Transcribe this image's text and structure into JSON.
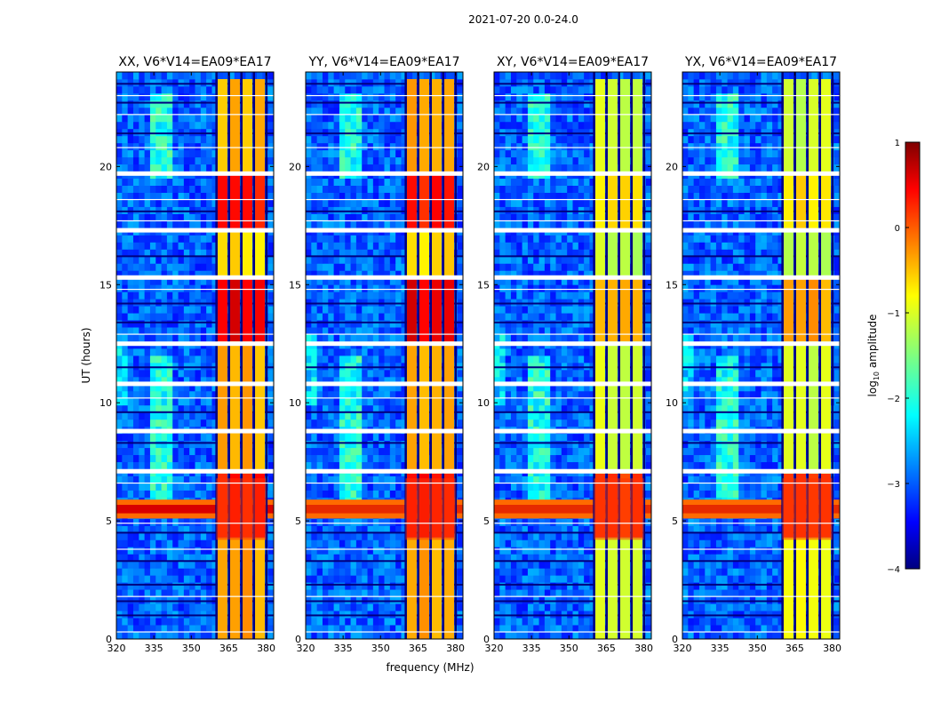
{
  "figure": {
    "suptitle": "2021-07-20 0.0-24.0",
    "xlabel": "frequency (MHz)",
    "ylabel": "UT (hours)"
  },
  "colorbar": {
    "label": "log10 amplitude",
    "label_main": "log",
    "label_sub": "10",
    "label_rest": " amplitude",
    "range": [
      -4,
      1
    ],
    "ticks": [
      1,
      0,
      -1,
      -2,
      -3,
      -4
    ],
    "tick_labels": [
      "1",
      "0",
      "−1",
      "−2",
      "−3",
      "−4"
    ],
    "colormap": "jet"
  },
  "chart_data": [
    {
      "type": "heatmap",
      "title": "XX, V6*V14=EA09*EA17",
      "polarization": "XX",
      "xlabel": "frequency (MHz)",
      "ylabel": "UT (hours)",
      "xlim": [
        320,
        383
      ],
      "ylim": [
        0,
        24
      ],
      "xticks": [
        320,
        335,
        350,
        365,
        380
      ],
      "yticks": [
        0,
        5,
        10,
        15,
        20
      ],
      "rfi_band_mhz": [
        360,
        380
      ],
      "strong_broadband_rfi_ut": [
        5.2,
        5.8
      ],
      "flagged_rows_ut": [
        7.1,
        8.8,
        10.8,
        12.5,
        15.3,
        17.3,
        19.7
      ]
    },
    {
      "type": "heatmap",
      "title": "YY, V6*V14=EA09*EA17",
      "polarization": "YY",
      "xlabel": "frequency (MHz)",
      "ylabel": "UT (hours)",
      "xlim": [
        320,
        383
      ],
      "ylim": [
        0,
        24
      ],
      "xticks": [
        320,
        335,
        350,
        365,
        380
      ],
      "yticks": [
        0,
        5,
        10,
        15,
        20
      ],
      "rfi_band_mhz": [
        360,
        380
      ],
      "strong_broadband_rfi_ut": [
        5.2,
        5.8
      ],
      "flagged_rows_ut": [
        7.1,
        8.8,
        10.8,
        12.5,
        15.3,
        17.3,
        19.7
      ]
    },
    {
      "type": "heatmap",
      "title": "XY, V6*V14=EA09*EA17",
      "polarization": "XY",
      "xlabel": "frequency (MHz)",
      "ylabel": "UT (hours)",
      "xlim": [
        320,
        383
      ],
      "ylim": [
        0,
        24
      ],
      "xticks": [
        320,
        335,
        350,
        365,
        380
      ],
      "yticks": [
        0,
        5,
        10,
        15,
        20
      ],
      "rfi_band_mhz": [
        360,
        380
      ],
      "strong_broadband_rfi_ut": [
        5.2,
        5.8
      ],
      "flagged_rows_ut": [
        7.1,
        8.8,
        10.8,
        12.5,
        15.3,
        17.3,
        19.7
      ]
    },
    {
      "type": "heatmap",
      "title": "YX, V6*V14=EA09*EA17",
      "polarization": "YX",
      "xlabel": "frequency (MHz)",
      "ylabel": "UT (hours)",
      "xlim": [
        320,
        383
      ],
      "ylim": [
        0,
        24
      ],
      "xticks": [
        320,
        335,
        350,
        365,
        380
      ],
      "yticks": [
        0,
        5,
        10,
        15,
        20
      ],
      "rfi_band_mhz": [
        360,
        380
      ],
      "strong_broadband_rfi_ut": [
        5.2,
        5.8
      ],
      "flagged_rows_ut": [
        7.1,
        8.8,
        10.8,
        12.5,
        15.3,
        17.3,
        19.7
      ]
    }
  ]
}
